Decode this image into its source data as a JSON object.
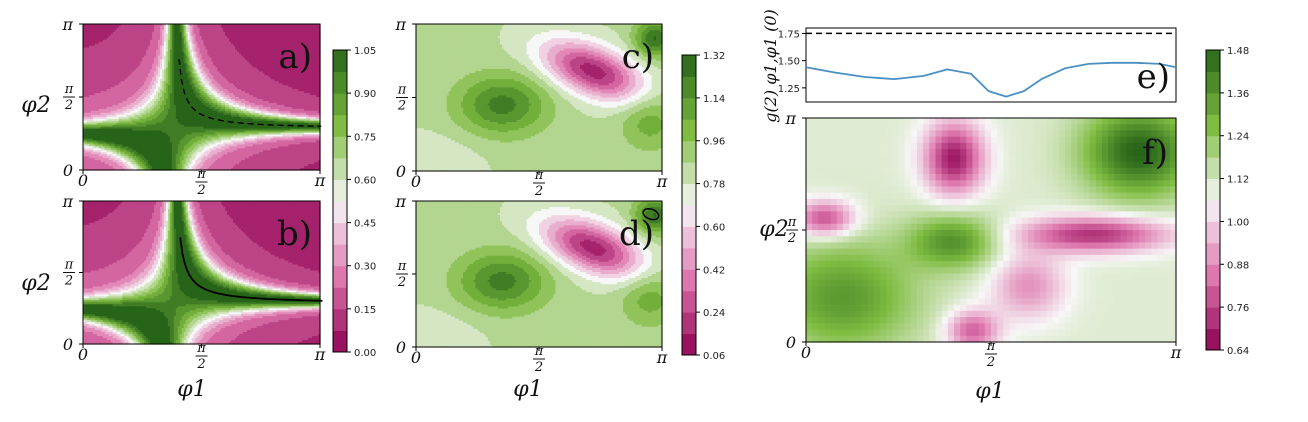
{
  "colors": {
    "low": "#8e0152",
    "mid_low": "#de77ae",
    "neutral": "#f7f7f7",
    "mid_high": "#7fbc41",
    "high": "#276419",
    "line_e": "#4a90c4",
    "dashed": "#000000"
  },
  "chart_data": [
    {
      "type": "heatmap",
      "panel_label": "a)",
      "xlabel": "",
      "ylabel": "φ2",
      "x_ticks": [
        "0",
        "π/2",
        "π"
      ],
      "y_ticks": [
        "0",
        "π/2",
        "π"
      ],
      "xlim": [
        0,
        3.1416
      ],
      "ylim": [
        0,
        3.1416
      ],
      "colormap": "PiYG",
      "clim": [
        0.0,
        1.05
      ],
      "overlay": "dashed black curve along the green ridge"
    },
    {
      "type": "heatmap",
      "panel_label": "b)",
      "xlabel": "φ1",
      "ylabel": "φ2",
      "x_ticks": [
        "0",
        "π/2",
        "π"
      ],
      "y_ticks": [
        "0",
        "π/2",
        "π"
      ],
      "xlim": [
        0,
        3.1416
      ],
      "ylim": [
        0,
        3.1416
      ],
      "colormap": "PiYG",
      "clim": [
        0.0,
        1.05
      ],
      "overlay": "solid black curve along the green ridge"
    },
    {
      "type": "colorbar",
      "for_panels": [
        "a)",
        "b)"
      ],
      "ticks": [
        "0.00",
        "0.15",
        "0.30",
        "0.45",
        "0.60",
        "0.75",
        "0.90",
        "1.05"
      ],
      "range": [
        0.0,
        1.05
      ]
    },
    {
      "type": "heatmap",
      "panel_label": "c)",
      "xlabel": "",
      "x_ticks": [
        "0",
        "π/2",
        "π"
      ],
      "y_ticks": [
        "0",
        "π/2",
        "π"
      ],
      "xlim": [
        0,
        3.1416
      ],
      "ylim": [
        0,
        3.1416
      ],
      "colormap": "PiYG",
      "clim": [
        0.06,
        1.32
      ]
    },
    {
      "type": "heatmap",
      "panel_label": "d)",
      "xlabel": "φ1",
      "x_ticks": [
        "0",
        "π/2",
        "π"
      ],
      "y_ticks": [
        "0",
        "π/2",
        "π"
      ],
      "xlim": [
        0,
        3.1416
      ],
      "ylim": [
        0,
        3.1416
      ],
      "colormap": "PiYG",
      "clim": [
        0.06,
        1.32
      ],
      "overlay": "small black closed contour near top-right"
    },
    {
      "type": "colorbar",
      "for_panels": [
        "c)",
        "d)"
      ],
      "ticks": [
        "0.06",
        "0.24",
        "0.42",
        "0.60",
        "0.78",
        "0.96",
        "1.14",
        "1.32"
      ],
      "range": [
        0.06,
        1.32
      ]
    },
    {
      "type": "line",
      "panel_label": "e)",
      "ylabel": "g(2) φ1,φ1 (0)",
      "y_ticks": [
        "1.25",
        "1.50",
        "1.75"
      ],
      "ylim": [
        1.12,
        1.8
      ],
      "xlim": [
        0,
        3.1416
      ],
      "series": [
        {
          "style": "solid",
          "x": [
            0.0,
            0.25,
            0.5,
            0.75,
            1.0,
            1.2,
            1.4,
            1.55,
            1.7,
            1.85,
            2.0,
            2.2,
            2.4,
            2.6,
            2.8,
            3.0,
            3.1416
          ],
          "y": [
            1.44,
            1.39,
            1.35,
            1.33,
            1.36,
            1.42,
            1.38,
            1.22,
            1.17,
            1.22,
            1.33,
            1.43,
            1.47,
            1.48,
            1.48,
            1.47,
            1.44
          ]
        },
        {
          "style": "dashed",
          "x": [
            0.0,
            3.1416
          ],
          "y": [
            1.75,
            1.75
          ]
        }
      ]
    },
    {
      "type": "heatmap",
      "panel_label": "f)",
      "xlabel": "φ1",
      "ylabel": "φ2",
      "x_ticks": [
        "0",
        "π/2",
        "π"
      ],
      "y_ticks": [
        "0",
        "π/2",
        "π"
      ],
      "xlim": [
        0,
        3.1416
      ],
      "ylim": [
        0,
        3.1416
      ],
      "colormap": "PiYG",
      "clim": [
        0.64,
        1.48
      ]
    },
    {
      "type": "colorbar",
      "for_panels": [
        "e)",
        "f)"
      ],
      "ticks": [
        "0.64",
        "0.76",
        "0.88",
        "1.00",
        "1.12",
        "1.24",
        "1.36",
        "1.48"
      ],
      "range": [
        0.64,
        1.48
      ]
    }
  ]
}
